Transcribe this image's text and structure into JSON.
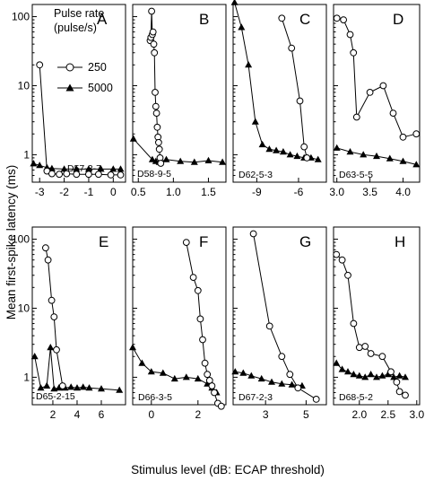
{
  "figure": {
    "ylabel": "Mean first-spike latency (ms)",
    "xlabel": "Stimulus level (dB: ECAP threshold)",
    "legend": {
      "title_line1": "Pulse rate",
      "title_line2": "(pulse/s)",
      "entries": [
        "250",
        "5000"
      ]
    }
  },
  "chart_data": [
    {
      "type": "line",
      "panel": "A",
      "id": "D57-3-7",
      "xlim": [
        -3.3,
        0.5
      ],
      "ylim": [
        0.4,
        150
      ],
      "yscale": "log",
      "xticks": [
        -3,
        -2,
        -1,
        0
      ],
      "xticklabels": [
        "-3",
        "-2",
        "-1",
        "0"
      ],
      "yticks": [
        1,
        10,
        100
      ],
      "yticklabels": [
        "1",
        "10",
        "100"
      ],
      "series": [
        {
          "name": "250",
          "x": [
            -3.0,
            -2.7,
            -2.5,
            -2.2,
            -1.9,
            -1.5,
            -1.0,
            -0.6,
            -0.1,
            0.3
          ],
          "y": [
            20,
            0.58,
            0.53,
            0.52,
            0.53,
            0.52,
            0.52,
            0.52,
            0.51,
            0.51
          ]
        },
        {
          "name": "5000",
          "x": [
            -3.25,
            -3.0,
            -2.7,
            -2.5,
            -2.0,
            -1.5,
            -1.0,
            -0.5,
            0.0,
            0.3
          ],
          "y": [
            0.74,
            0.7,
            0.65,
            0.63,
            0.62,
            0.62,
            0.62,
            0.62,
            0.62,
            0.62
          ]
        }
      ]
    },
    {
      "type": "line",
      "panel": "B",
      "id": "D58-9-5",
      "xlim": [
        0.42,
        1.75
      ],
      "ylim": [
        0.4,
        150
      ],
      "yscale": "log",
      "xticks": [
        0.5,
        1.0,
        1.5
      ],
      "xticklabels": [
        "0.5",
        "1.0",
        "1.5"
      ],
      "yticks": [
        1,
        10,
        100
      ],
      "yticklabels": [
        "",
        "",
        ""
      ],
      "series": [
        {
          "name": "250",
          "x": [
            0.67,
            0.68,
            0.69,
            0.7,
            0.71,
            0.72,
            0.73,
            0.74,
            0.75,
            0.76,
            0.77,
            0.78,
            0.79,
            0.8,
            0.81,
            0.82
          ],
          "y": [
            45,
            50,
            120,
            55,
            60,
            40,
            30,
            8,
            5,
            4,
            2.5,
            1.8,
            1.5,
            1.2,
            0.9,
            0.75
          ]
        },
        {
          "name": "5000",
          "x": [
            0.43,
            0.7,
            0.75,
            0.8,
            0.9,
            1.1,
            1.3,
            1.5,
            1.7
          ],
          "y": [
            1.7,
            0.85,
            0.8,
            0.78,
            0.85,
            0.8,
            0.78,
            0.82,
            0.78
          ]
        }
      ]
    },
    {
      "type": "line",
      "panel": "C",
      "id": "D62-5-3",
      "xlim": [
        -10.7,
        -4.0
      ],
      "ylim": [
        0.4,
        150
      ],
      "yscale": "log",
      "xticks": [
        -9,
        -6
      ],
      "xticklabels": [
        "-9",
        "-6"
      ],
      "yticks": [
        1,
        10,
        100
      ],
      "yticklabels": [
        "",
        "",
        ""
      ],
      "series": [
        {
          "name": "250",
          "x": [
            -7.2,
            -6.5,
            -5.9,
            -5.6,
            -5.4
          ],
          "y": [
            95,
            35,
            6,
            1.3,
            0.9
          ]
        },
        {
          "name": "5000",
          "x": [
            -10.6,
            -10.1,
            -9.6,
            -9.1,
            -8.6,
            -8.1,
            -7.6,
            -7.1,
            -6.6,
            -6.1,
            -5.6,
            -5.1,
            -4.6
          ],
          "y": [
            160,
            70,
            20,
            3.0,
            1.4,
            1.2,
            1.15,
            1.1,
            1.0,
            0.95,
            0.9,
            0.9,
            0.85
          ]
        }
      ]
    },
    {
      "type": "line",
      "panel": "D",
      "id": "D63-5-5",
      "xlim": [
        2.95,
        4.25
      ],
      "ylim": [
        0.4,
        150
      ],
      "yscale": "log",
      "xticks": [
        3.0,
        3.5,
        4.0
      ],
      "xticklabels": [
        "3.0",
        "3.5",
        "4.0"
      ],
      "yticks": [
        1,
        10,
        100
      ],
      "yticklabels": [
        "",
        "",
        ""
      ],
      "series": [
        {
          "name": "250",
          "x": [
            3.0,
            3.1,
            3.2,
            3.25,
            3.3,
            3.5,
            3.7,
            3.85,
            4.0,
            4.2
          ],
          "y": [
            95,
            90,
            55,
            30,
            3.5,
            8,
            10,
            4,
            1.8,
            2.0
          ]
        },
        {
          "name": "5000",
          "x": [
            3.0,
            3.2,
            3.4,
            3.6,
            3.8,
            4.0,
            4.2
          ],
          "y": [
            1.25,
            1.1,
            1.0,
            0.95,
            0.88,
            0.8,
            0.72
          ]
        }
      ]
    },
    {
      "type": "line",
      "panel": "E",
      "id": "D65-2-15",
      "xlim": [
        0.3,
        8.0
      ],
      "ylim": [
        0.4,
        150
      ],
      "yscale": "log",
      "xticks": [
        2,
        4,
        6
      ],
      "xticklabels": [
        "2",
        "4",
        "6"
      ],
      "yticks": [
        1,
        10,
        100
      ],
      "yticklabels": [
        "1",
        "10",
        "100"
      ],
      "series": [
        {
          "name": "250",
          "x": [
            1.4,
            1.6,
            1.9,
            2.1,
            2.3,
            2.8
          ],
          "y": [
            75,
            50,
            13,
            7.5,
            2.5,
            0.75
          ]
        },
        {
          "name": "5000",
          "x": [
            0.5,
            1.0,
            1.5,
            1.8,
            2.1,
            2.5,
            3.0,
            3.5,
            4.0,
            4.5,
            5.0,
            6.0,
            7.5
          ],
          "y": [
            2.0,
            0.7,
            0.75,
            2.7,
            0.68,
            0.7,
            0.7,
            0.72,
            0.7,
            0.72,
            0.7,
            0.68,
            0.65
          ]
        }
      ]
    },
    {
      "type": "line",
      "panel": "F",
      "id": "D66-3-5",
      "xlim": [
        -0.8,
        3.2
      ],
      "ylim": [
        0.4,
        150
      ],
      "yscale": "log",
      "xticks": [
        0,
        2
      ],
      "xticklabels": [
        "0",
        "2"
      ],
      "yticks": [
        1,
        10,
        100
      ],
      "yticklabels": [
        "",
        "",
        ""
      ],
      "series": [
        {
          "name": "250",
          "x": [
            1.5,
            1.8,
            2.0,
            2.1,
            2.2,
            2.3,
            2.4,
            2.5,
            2.6,
            2.7,
            2.85,
            3.0
          ],
          "y": [
            90,
            28,
            18,
            7,
            3.5,
            1.6,
            1.1,
            0.9,
            0.75,
            0.6,
            0.42,
            0.38
          ]
        },
        {
          "name": "5000",
          "x": [
            -0.8,
            -0.4,
            0.0,
            0.5,
            1.0,
            1.5,
            2.0,
            2.4,
            2.6,
            2.8
          ],
          "y": [
            2.7,
            1.6,
            1.2,
            1.15,
            0.95,
            1.0,
            0.95,
            0.8,
            0.7,
            0.6
          ]
        }
      ]
    },
    {
      "type": "line",
      "panel": "G",
      "id": "D67-2-3",
      "xlim": [
        1.4,
        6.0
      ],
      "ylim": [
        0.4,
        150
      ],
      "yscale": "log",
      "xticks": [
        3,
        5
      ],
      "xticklabels": [
        "3",
        "5"
      ],
      "yticks": [
        1,
        10,
        100
      ],
      "yticklabels": [
        "",
        "",
        ""
      ],
      "series": [
        {
          "name": "250",
          "x": [
            2.4,
            3.2,
            3.8,
            4.2,
            4.6,
            5.5
          ],
          "y": [
            120,
            5.5,
            2.0,
            1.1,
            0.7,
            0.48
          ]
        },
        {
          "name": "5000",
          "x": [
            1.5,
            1.9,
            2.3,
            2.8,
            3.3,
            3.8,
            4.3,
            4.8
          ],
          "y": [
            1.2,
            1.15,
            1.05,
            0.95,
            0.85,
            0.8,
            0.78,
            0.75
          ]
        }
      ]
    },
    {
      "type": "line",
      "panel": "H",
      "id": "D68-5-2",
      "xlim": [
        1.55,
        3.05
      ],
      "ylim": [
        0.4,
        150
      ],
      "yscale": "log",
      "xticks": [
        2.0,
        2.5,
        3.0
      ],
      "xticklabels": [
        "2.0",
        "2.5",
        "3.0"
      ],
      "yticks": [
        1,
        10,
        100
      ],
      "yticklabels": [
        "",
        "",
        ""
      ],
      "series": [
        {
          "name": "250",
          "x": [
            1.6,
            1.7,
            1.8,
            1.9,
            2.0,
            2.1,
            2.2,
            2.4,
            2.55,
            2.65,
            2.7,
            2.8
          ],
          "y": [
            60,
            50,
            30,
            6,
            2.7,
            2.8,
            2.2,
            2.0,
            1.2,
            0.85,
            0.62,
            0.55
          ]
        },
        {
          "name": "5000",
          "x": [
            1.6,
            1.7,
            1.8,
            1.9,
            2.0,
            2.1,
            2.2,
            2.3,
            2.4,
            2.5,
            2.6,
            2.7,
            2.8
          ],
          "y": [
            1.6,
            1.3,
            1.2,
            1.1,
            1.05,
            1.0,
            1.1,
            1.0,
            1.05,
            1.1,
            1.0,
            1.05,
            1.0
          ]
        }
      ]
    }
  ]
}
